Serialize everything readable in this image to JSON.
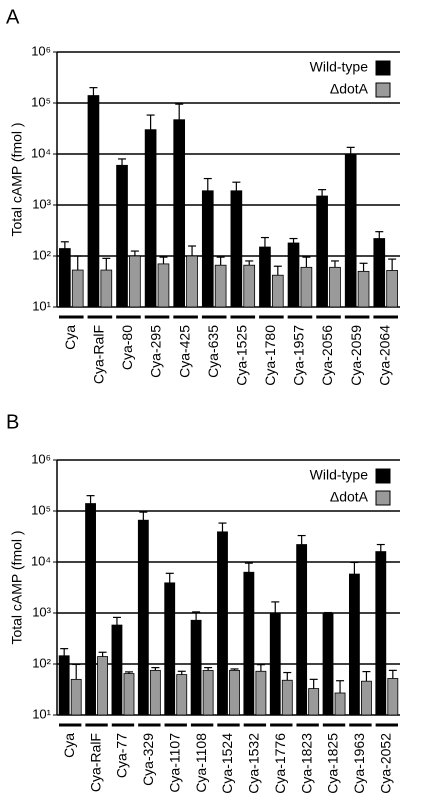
{
  "chart_data": [
    {
      "type": "bar",
      "panel_label": "A",
      "y_label": "Total  cAMP  (fmol )",
      "log_scale": true,
      "grid": true,
      "legend": "top-right",
      "ylim": [
        10,
        1000000
      ],
      "yticks": [
        {
          "value": 10,
          "label": "10¹"
        },
        {
          "value": 100,
          "label": "10²"
        },
        {
          "value": 1000,
          "label": "10³"
        },
        {
          "value": 10000,
          "label": "10⁴"
        },
        {
          "value": 100000,
          "label": "10⁵"
        },
        {
          "value": 1000000,
          "label": "10⁶"
        }
      ],
      "categories": [
        "Cya",
        "Cya-RalF",
        "Cya-80",
        "Cya-295",
        "Cya-425",
        "Cya-635",
        "Cya-1525",
        "Cya-1780",
        "Cya-1957",
        "Cya-2056",
        "Cya-2059",
        "Cya-2064"
      ],
      "series": [
        {
          "name": "Wild-type",
          "color": "#000000",
          "values": [
            140,
            140000,
            6000,
            30000,
            47000,
            1900,
            1900,
            150,
            180,
            1500,
            10000,
            220
          ],
          "errors": [
            50,
            60000,
            2000,
            28000,
            48000,
            1400,
            900,
            80,
            40,
            500,
            3500,
            80
          ]
        },
        {
          "name": "ΔdotA",
          "color": "#9a9a9a",
          "values": [
            53,
            53,
            100,
            70,
            100,
            66,
            66,
            42,
            60,
            60,
            50,
            52
          ],
          "errors": [
            47,
            37,
            25,
            25,
            57,
            29,
            14,
            21,
            35,
            20,
            22,
            35
          ]
        }
      ]
    },
    {
      "type": "bar",
      "panel_label": "B",
      "y_label": "Total  cAMP  (fmol )",
      "log_scale": true,
      "grid": true,
      "legend": "top-right",
      "ylim": [
        10,
        1000000
      ],
      "yticks": [
        {
          "value": 10,
          "label": "10¹"
        },
        {
          "value": 100,
          "label": "10²"
        },
        {
          "value": 1000,
          "label": "10³"
        },
        {
          "value": 10000,
          "label": "10⁴"
        },
        {
          "value": 100000,
          "label": "10⁵"
        },
        {
          "value": 1000000,
          "label": "10⁶"
        }
      ],
      "categories": [
        "Cya",
        "Cya-RalF",
        "Cya-77",
        "Cya-329",
        "Cya-1107",
        "Cya-1108",
        "Cya-1524",
        "Cya-1532",
        "Cya-1776",
        "Cya-1823",
        "Cya-1825",
        "Cya-1963",
        "Cya-2052"
      ],
      "series": [
        {
          "name": "Wild-type",
          "color": "#000000",
          "values": [
            145,
            140000,
            580,
            66000,
            3900,
            720,
            39000,
            6300,
            1000,
            22000,
            1000,
            5800,
            16000
          ],
          "errors": [
            55,
            60000,
            240,
            29000,
            2100,
            330,
            19000,
            3200,
            650,
            11000,
            20,
            4000,
            6000
          ]
        },
        {
          "name": "ΔdotA",
          "color": "#9a9a9a",
          "values": [
            50,
            140,
            65,
            75,
            62,
            75,
            75,
            72,
            48,
            33,
            27,
            46,
            52
          ],
          "errors": [
            48,
            30,
            5,
            10,
            10,
            10,
            5,
            25,
            20,
            17,
            20,
            25,
            23
          ]
        }
      ]
    }
  ]
}
